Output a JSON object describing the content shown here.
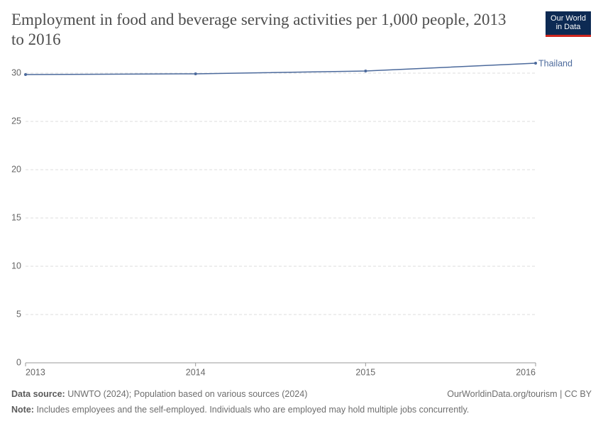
{
  "chart_data": {
    "type": "line",
    "title": "Employment in food and beverage serving activities per 1,000 people, 2013 to 2016",
    "x": [
      2013,
      2014,
      2015,
      2016
    ],
    "series": [
      {
        "name": "Thailand",
        "color": "#4c6a9c",
        "values": [
          29.85,
          29.93,
          30.22,
          31.03
        ]
      }
    ],
    "xlim": [
      2013,
      2016
    ],
    "xticks": [
      2013,
      2014,
      2015,
      2016
    ],
    "ylim": [
      0,
      31.03
    ],
    "yticks": [
      0,
      5,
      10,
      15,
      20,
      25,
      30
    ],
    "grid": true
  },
  "logo": {
    "line1": "Our World",
    "line2": "in Data"
  },
  "footer": {
    "source_label": "Data source:",
    "source": "UNWTO (2024); Population based on various sources (2024)",
    "credit": "OurWorldinData.org/tourism | CC BY",
    "note_label": "Note:",
    "note": "Includes employees and the self-employed. Individuals who are employed may hold multiple jobs concurrently."
  }
}
